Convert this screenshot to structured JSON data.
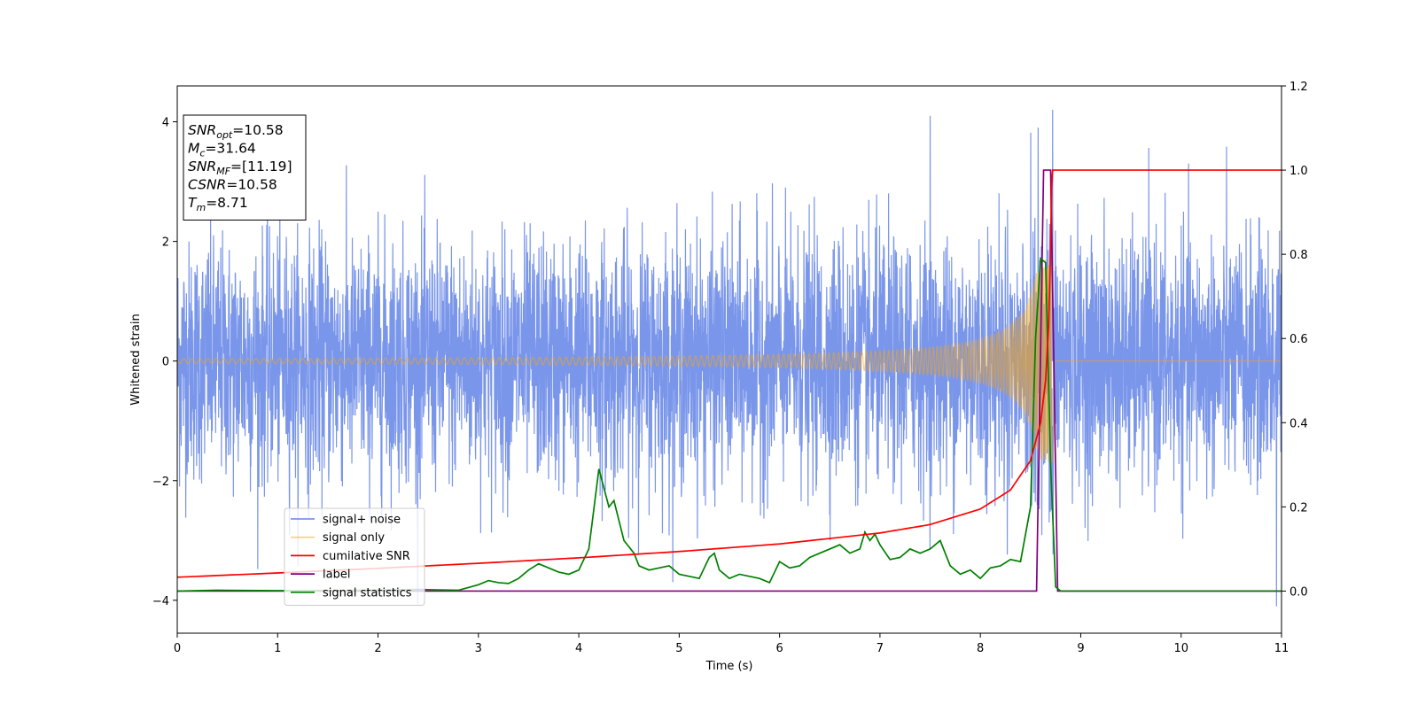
{
  "chart_data": {
    "type": "line",
    "xlabel": "Time (s)",
    "ylabel_left": "Whitened strain",
    "ylabel_right": "",
    "xlim": [
      0,
      11
    ],
    "ylim_left": [
      -4.55,
      4.6
    ],
    "ylim_right": [
      -0.1,
      1.2
    ],
    "x_ticks": [
      0,
      1,
      2,
      3,
      4,
      5,
      6,
      7,
      8,
      9,
      10,
      11
    ],
    "y_left_ticks": [
      -4,
      -2,
      0,
      2,
      4
    ],
    "y_right_ticks": [
      0.0,
      0.2,
      0.4,
      0.6,
      0.8,
      1.0,
      1.2
    ],
    "grid": false,
    "legend_position": "lower-left",
    "info_box": {
      "position": "top-left",
      "lines": [
        {
          "main": "SNR",
          "sub": "opt",
          "value": "=10.58"
        },
        {
          "main": "M",
          "sub": "c",
          "value": "=31.64"
        },
        {
          "main": "SNR",
          "sub": "MF",
          "value": "=[11.19]"
        },
        {
          "main": "CSNR",
          "sub": "",
          "value": "=10.58"
        },
        {
          "main": "T",
          "sub": "m",
          "value": "=8.71"
        }
      ]
    },
    "series": [
      {
        "name": "signal+ noise",
        "axis": "left",
        "color": "#4169e1",
        "kind": "noise",
        "noise_sigma": 1.0,
        "noise_range": [
          -4.1,
          4.2
        ],
        "notable_peaks": [
          [
            7.5,
            4.1
          ],
          [
            8.72,
            4.2
          ],
          [
            10.95,
            -4.1
          ]
        ]
      },
      {
        "name": "signal only",
        "axis": "left",
        "color": "#ffa500",
        "kind": "chirp",
        "merger_time": 8.71,
        "amplitude_peak": 1.7,
        "amplitude_at_start": 0.04
      },
      {
        "name": "cumilative SNR",
        "axis": "right",
        "color": "#ff0000",
        "x": [
          0,
          1,
          2,
          3,
          4,
          5,
          6,
          7,
          7.5,
          8,
          8.3,
          8.5,
          8.6,
          8.65,
          8.68,
          8.7,
          8.71,
          8.72,
          11
        ],
        "y": [
          0.033,
          0.043,
          0.054,
          0.066,
          0.079,
          0.094,
          0.112,
          0.138,
          0.158,
          0.195,
          0.24,
          0.31,
          0.4,
          0.5,
          0.63,
          0.82,
          0.96,
          1.0,
          1.0
        ]
      },
      {
        "name": "label",
        "axis": "right",
        "color": "#800080",
        "x": [
          0,
          8.56,
          8.63,
          8.7,
          8.77,
          11
        ],
        "y": [
          0,
          0,
          1.0,
          1.0,
          0,
          0
        ]
      },
      {
        "name": "signal statistics",
        "axis": "right",
        "color": "#008000",
        "x": [
          0,
          0.4,
          1,
          2,
          2.4,
          2.6,
          2.8,
          3.0,
          3.1,
          3.2,
          3.3,
          3.4,
          3.5,
          3.6,
          3.7,
          3.8,
          3.9,
          4.0,
          4.1,
          4.2,
          4.3,
          4.35,
          4.45,
          4.55,
          4.6,
          4.7,
          4.8,
          4.9,
          5.0,
          5.1,
          5.2,
          5.3,
          5.35,
          5.4,
          5.5,
          5.6,
          5.7,
          5.8,
          5.9,
          6.0,
          6.1,
          6.2,
          6.3,
          6.4,
          6.5,
          6.6,
          6.7,
          6.8,
          6.85,
          6.9,
          6.95,
          7.0,
          7.1,
          7.2,
          7.3,
          7.4,
          7.5,
          7.6,
          7.7,
          7.8,
          7.9,
          8.0,
          8.1,
          8.2,
          8.3,
          8.4,
          8.5,
          8.55,
          8.6,
          8.65,
          8.7,
          8.75,
          8.8,
          9,
          11
        ],
        "y": [
          0,
          0.002,
          0.001,
          0.002,
          0.004,
          0.003,
          0.002,
          0.015,
          0.025,
          0.02,
          0.018,
          0.03,
          0.05,
          0.065,
          0.055,
          0.045,
          0.04,
          0.05,
          0.1,
          0.29,
          0.2,
          0.215,
          0.12,
          0.09,
          0.06,
          0.05,
          0.055,
          0.06,
          0.04,
          0.035,
          0.03,
          0.08,
          0.09,
          0.05,
          0.03,
          0.04,
          0.035,
          0.03,
          0.02,
          0.07,
          0.055,
          0.06,
          0.08,
          0.09,
          0.1,
          0.11,
          0.09,
          0.1,
          0.14,
          0.12,
          0.135,
          0.11,
          0.075,
          0.08,
          0.1,
          0.09,
          0.1,
          0.12,
          0.06,
          0.04,
          0.05,
          0.03,
          0.055,
          0.06,
          0.075,
          0.07,
          0.2,
          0.6,
          0.79,
          0.78,
          0.3,
          0.01,
          0,
          0,
          0
        ]
      }
    ]
  }
}
